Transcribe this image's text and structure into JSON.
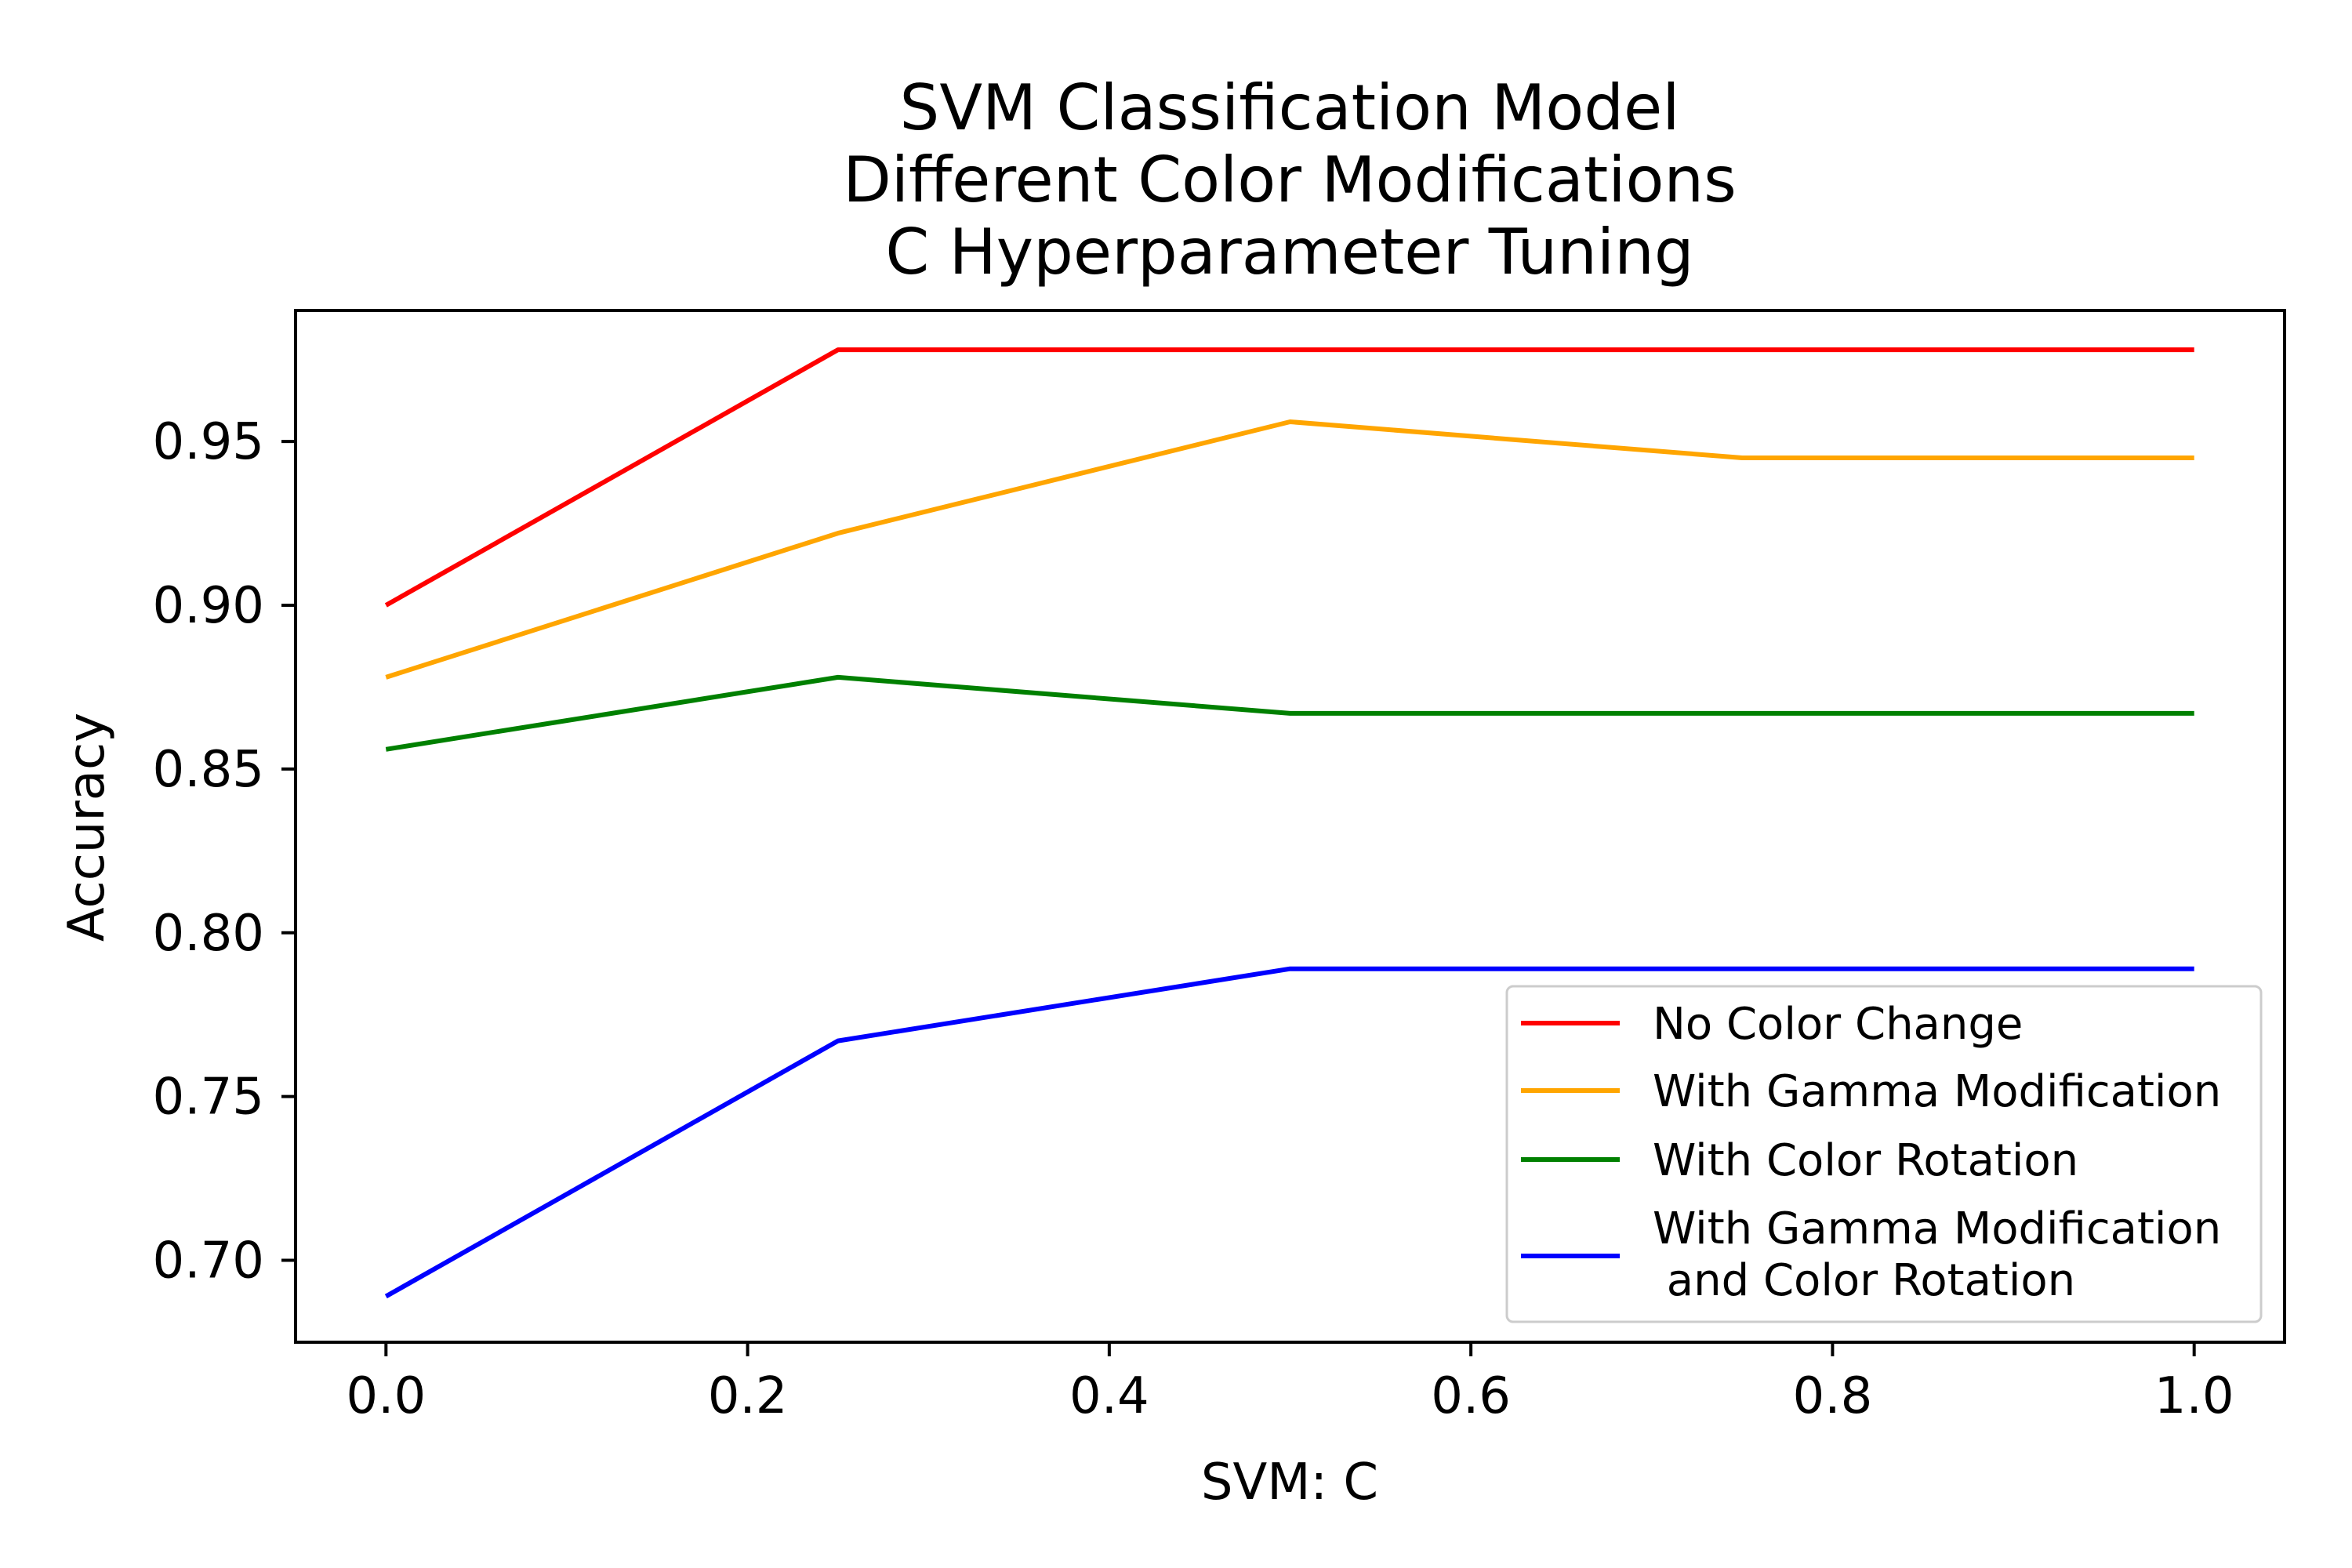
{
  "chart_data": {
    "type": "line",
    "title": [
      "SVM Classification Model",
      "Different Color Modifications",
      "C Hyperparameter Tuning"
    ],
    "xlabel": "SVM: C",
    "ylabel": "Accuracy",
    "xlim": [
      -0.05,
      1.05
    ],
    "ylim": [
      0.675,
      0.99
    ],
    "xticks": [
      "0.0",
      "0.2",
      "0.4",
      "0.6",
      "0.8",
      "1.0"
    ],
    "yticks": [
      "0.70",
      "0.75",
      "0.80",
      "0.85",
      "0.90",
      "0.95"
    ],
    "x": [
      0.0,
      0.25,
      0.5,
      0.75,
      1.0
    ],
    "grid": false,
    "legend_position": "lower-right",
    "series": [
      {
        "name": "No Color Change",
        "color": "#ff0000",
        "values": [
          0.9,
          0.978,
          0.978,
          0.978,
          0.978
        ]
      },
      {
        "name": "With Gamma Modification",
        "color": "#ffa500",
        "values": [
          0.878,
          0.922,
          0.956,
          0.945,
          0.945
        ]
      },
      {
        "name": "With Color Rotation",
        "color": "#008000",
        "values": [
          0.856,
          0.878,
          0.867,
          0.867,
          0.867
        ]
      },
      {
        "name": "With Gamma Modification\n and Color Rotation",
        "color": "#0000ff",
        "values": [
          0.689,
          0.767,
          0.789,
          0.789,
          0.789
        ]
      }
    ]
  }
}
